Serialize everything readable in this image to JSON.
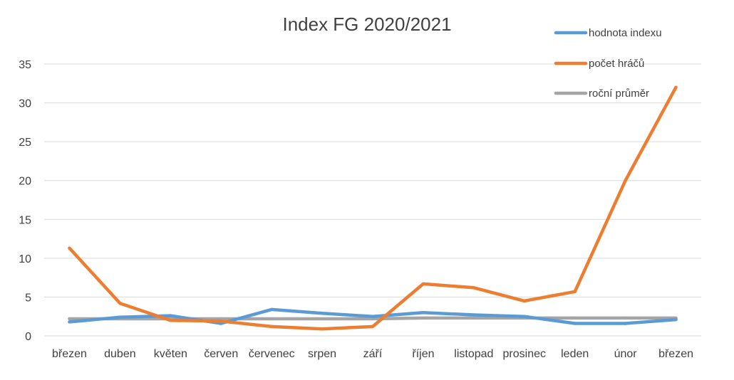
{
  "chart_data": {
    "type": "line",
    "title": "Index FG 2020/2021",
    "xlabel": "",
    "ylabel": "",
    "ylim": [
      0,
      35
    ],
    "yticks": [
      0,
      5,
      10,
      15,
      20,
      25,
      30,
      35
    ],
    "grid": true,
    "legend_position": "top-right",
    "categories": [
      "březen",
      "duben",
      "květen",
      "červen",
      "červenec",
      "srpen",
      "září",
      "říjen",
      "listopad",
      "prosinec",
      "leden",
      "únor",
      "březen"
    ],
    "series": [
      {
        "name": "hodnota indexu",
        "color": "#5b9bd5",
        "values": [
          1.8,
          2.4,
          2.6,
          1.6,
          3.4,
          2.9,
          2.5,
          3.0,
          2.7,
          2.5,
          1.6,
          1.6,
          2.1
        ]
      },
      {
        "name": "počet hráčů",
        "color": "#ed7d31",
        "values": [
          11.3,
          4.2,
          2.0,
          1.9,
          1.2,
          0.9,
          1.2,
          6.7,
          6.2,
          4.5,
          5.7,
          20.0,
          32.0
        ]
      },
      {
        "name": "roční průměr",
        "color": "#a5a5a5",
        "values": [
          2.2,
          2.2,
          2.2,
          2.2,
          2.2,
          2.2,
          2.2,
          2.3,
          2.3,
          2.3,
          2.3,
          2.3,
          2.3
        ]
      }
    ]
  }
}
